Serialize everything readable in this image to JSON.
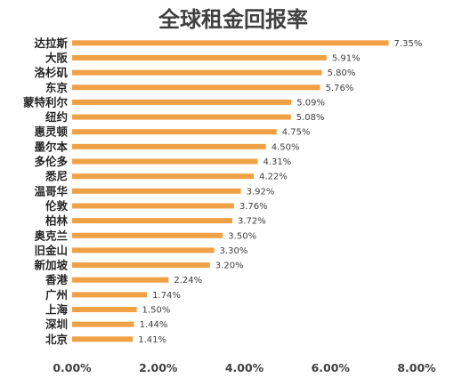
{
  "chart_data": {
    "type": "bar",
    "orientation": "horizontal",
    "title": "全球租金回报率",
    "xlabel": "",
    "ylabel": "",
    "categories": [
      "达拉斯",
      "大阪",
      "洛杉矶",
      "东京",
      "蒙特利尔",
      "纽约",
      "惠灵顿",
      "墨尔本",
      "多伦多",
      "悉尼",
      "温哥华",
      "伦敦",
      "柏林",
      "奥克兰",
      "旧金山",
      "新加坡",
      "香港",
      "广州",
      "上海",
      "深圳",
      "北京"
    ],
    "values": [
      7.35,
      5.91,
      5.8,
      5.76,
      5.09,
      5.08,
      4.75,
      4.5,
      4.31,
      4.22,
      3.92,
      3.76,
      3.72,
      3.5,
      3.3,
      3.2,
      2.24,
      1.74,
      1.5,
      1.44,
      1.41
    ],
    "value_labels": [
      "7.35%",
      "5.91%",
      "5.80%",
      "5.76%",
      "5.09%",
      "5.08%",
      "4.75%",
      "4.50%",
      "4.31%",
      "4.22%",
      "3.92%",
      "3.76%",
      "3.72%",
      "3.50%",
      "3.30%",
      "3.20%",
      "2.24%",
      "1.74%",
      "1.50%",
      "1.44%",
      "1.41%"
    ],
    "xlim": [
      0,
      8
    ],
    "xticks": [
      0,
      2,
      4,
      6,
      8
    ],
    "xtick_labels": [
      "0.00%",
      "2.00%",
      "4.00%",
      "6.00%",
      "8.00%"
    ],
    "grid": false,
    "legend": "none",
    "colors": {
      "bar": "#f0a146",
      "title": "#404040",
      "category_text": "#262626",
      "value_text": "#404040"
    }
  }
}
